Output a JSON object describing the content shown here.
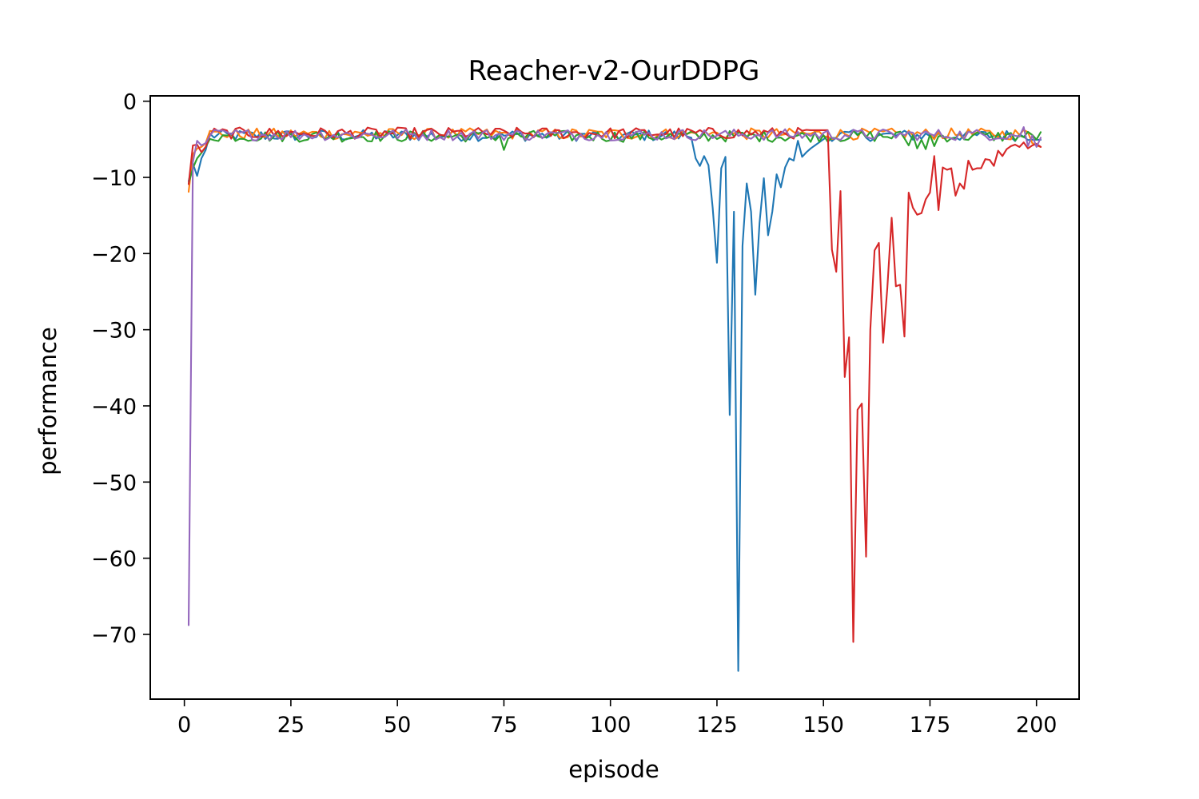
{
  "chart_data": {
    "type": "line",
    "title": "Reacher-v2-OurDDPG",
    "xlabel": "episode",
    "ylabel": "performance",
    "xlim": [
      -8,
      210
    ],
    "ylim": [
      -78.5,
      0.7
    ],
    "xticks": [
      0,
      25,
      50,
      75,
      100,
      125,
      150,
      175,
      200
    ],
    "yticks": [
      0,
      -10,
      -20,
      -30,
      -40,
      -50,
      -60,
      -70
    ],
    "xtick_labels": [
      "0",
      "25",
      "50",
      "75",
      "100",
      "125",
      "150",
      "175",
      "200"
    ],
    "ytick_labels": [
      "0",
      "−10",
      "−20",
      "−30",
      "−40",
      "−50",
      "−60",
      "−70"
    ],
    "grid": false,
    "legend": "none",
    "x_start": 1,
    "x_end": 201,
    "series": [
      {
        "color": "#1f77b4",
        "baseline": -4.5,
        "start": [
          -10.5,
          -8.2,
          -9.8,
          -7.5,
          -6.4
        ],
        "anomalies": [
          [
            119,
            -4.8
          ],
          [
            120,
            -7.5
          ],
          [
            121,
            -8.5
          ],
          [
            122,
            -7.2
          ],
          [
            123,
            -8.4
          ],
          [
            124,
            -14.0
          ],
          [
            125,
            -21.2
          ],
          [
            126,
            -8.8
          ],
          [
            127,
            -7.3
          ],
          [
            128,
            -41.2
          ],
          [
            129,
            -14.5
          ],
          [
            130,
            -74.8
          ],
          [
            131,
            -19.0
          ],
          [
            132,
            -10.8
          ],
          [
            133,
            -14.5
          ],
          [
            134,
            -25.4
          ],
          [
            135,
            -16.0
          ],
          [
            136,
            -10.1
          ],
          [
            137,
            -17.6
          ],
          [
            138,
            -14.5
          ],
          [
            139,
            -9.6
          ],
          [
            140,
            -11.3
          ],
          [
            141,
            -8.7
          ],
          [
            142,
            -7.5
          ],
          [
            143,
            -7.8
          ],
          [
            144,
            -5.2
          ],
          [
            145,
            -7.3
          ],
          [
            146,
            -6.7
          ],
          [
            147,
            -6.2
          ],
          [
            148,
            -5.8
          ],
          [
            149,
            -5.4
          ],
          [
            150,
            -5.0
          ]
        ]
      },
      {
        "color": "#ff7f0e",
        "baseline": -4.3,
        "start": [
          -11.9,
          -7.0,
          -6.2,
          -6.0,
          -5.5
        ],
        "anomalies": [
          [
            199,
            -5.5
          ],
          [
            200,
            -5.8
          ],
          [
            201,
            -6.0
          ]
        ]
      },
      {
        "color": "#2ca02c",
        "baseline": -4.6,
        "start": [
          -10.8,
          -8.8,
          -7.5,
          -6.8,
          -6.0
        ],
        "anomalies": [
          [
            75,
            -6.4
          ],
          [
            170,
            -5.8
          ],
          [
            172,
            -6.2
          ],
          [
            174,
            -6.3
          ],
          [
            176,
            -5.9
          ]
        ]
      },
      {
        "color": "#d62728",
        "baseline": -4.2,
        "start": [
          -10.9,
          -5.8,
          -5.7,
          -6.7,
          -6.0
        ],
        "anomalies": [
          [
            147,
            -3.8
          ],
          [
            148,
            -3.8
          ],
          [
            149,
            -3.8
          ],
          [
            150,
            -3.8
          ],
          [
            151,
            -3.8
          ],
          [
            152,
            -19.5
          ],
          [
            153,
            -22.4
          ],
          [
            154,
            -11.8
          ],
          [
            155,
            -36.2
          ],
          [
            156,
            -31.0
          ],
          [
            157,
            -71.0
          ],
          [
            158,
            -40.5
          ],
          [
            159,
            -39.7
          ],
          [
            160,
            -59.8
          ],
          [
            161,
            -30.0
          ],
          [
            162,
            -19.6
          ],
          [
            163,
            -18.6
          ],
          [
            164,
            -31.7
          ],
          [
            165,
            -24.5
          ],
          [
            166,
            -15.3
          ],
          [
            167,
            -24.3
          ],
          [
            168,
            -24.1
          ],
          [
            169,
            -30.9
          ],
          [
            170,
            -12.0
          ],
          [
            171,
            -14.0
          ],
          [
            172,
            -14.9
          ],
          [
            173,
            -14.7
          ],
          [
            174,
            -12.9
          ],
          [
            175,
            -12.0
          ],
          [
            176,
            -7.2
          ],
          [
            177,
            -14.3
          ],
          [
            178,
            -8.7
          ],
          [
            179,
            -9.0
          ],
          [
            180,
            -8.8
          ],
          [
            181,
            -12.4
          ],
          [
            182,
            -10.8
          ],
          [
            183,
            -11.5
          ],
          [
            184,
            -7.8
          ],
          [
            185,
            -9.0
          ],
          [
            186,
            -8.8
          ],
          [
            187,
            -8.8
          ],
          [
            188,
            -7.6
          ],
          [
            189,
            -7.7
          ],
          [
            190,
            -8.5
          ],
          [
            191,
            -6.5
          ],
          [
            192,
            -7.2
          ],
          [
            193,
            -6.3
          ],
          [
            194,
            -5.9
          ],
          [
            195,
            -5.7
          ],
          [
            196,
            -6.0
          ],
          [
            197,
            -5.4
          ],
          [
            198,
            -6.2
          ],
          [
            199,
            -5.8
          ],
          [
            200,
            -5.6
          ],
          [
            201,
            -6.0
          ]
        ]
      },
      {
        "color": "#9467bd",
        "baseline": -4.4,
        "start": [
          -68.8,
          -8.0,
          -5.2,
          -5.8,
          -5.5
        ],
        "anomalies": [
          [
            197,
            -3.4
          ],
          [
            198,
            -5.9
          ],
          [
            199,
            -4.5
          ],
          [
            200,
            -6.0
          ],
          [
            201,
            -4.8
          ]
        ]
      }
    ]
  }
}
